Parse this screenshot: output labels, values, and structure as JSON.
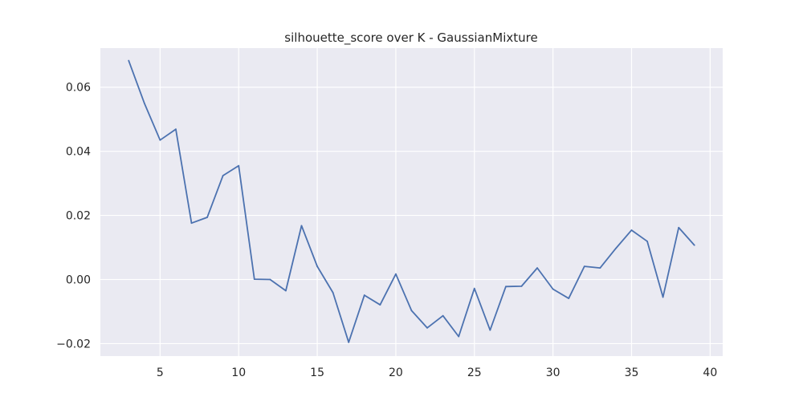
{
  "chart_data": {
    "type": "line",
    "title": "silhouette_score over K - GaussianMixture",
    "xlabel": "",
    "ylabel": "",
    "xlim": [
      1.2,
      40.8
    ],
    "ylim": [
      -0.0239,
      0.0722
    ],
    "xticks": [
      5,
      10,
      15,
      20,
      25,
      30,
      35,
      40
    ],
    "yticks": [
      -0.02,
      0.0,
      0.02,
      0.04,
      0.06
    ],
    "ytick_labels": [
      "−0.02",
      "0.00",
      "0.02",
      "0.04",
      "0.06"
    ],
    "grid": true,
    "background": "#eaeaf2",
    "grid_color": "#ffffff",
    "series": [
      {
        "color": "#4c72b0",
        "x": [
          3,
          4,
          5,
          6,
          7,
          8,
          9,
          10,
          11,
          12,
          13,
          14,
          15,
          16,
          17,
          18,
          19,
          20,
          21,
          22,
          23,
          24,
          25,
          26,
          27,
          28,
          29,
          30,
          31,
          32,
          33,
          34,
          35,
          36,
          37,
          38,
          39
        ],
        "values": [
          0.0683,
          0.055,
          0.0435,
          0.0469,
          0.0176,
          0.0194,
          0.0324,
          0.0355,
          0.0001,
          0.0,
          -0.0035,
          0.0168,
          0.0041,
          -0.0041,
          -0.0196,
          -0.0049,
          -0.0079,
          0.0017,
          -0.0097,
          -0.0151,
          -0.0113,
          -0.0178,
          -0.0028,
          -0.0158,
          -0.0022,
          -0.0021,
          0.0036,
          -0.003,
          -0.0059,
          0.0041,
          0.0036,
          0.0097,
          0.0154,
          0.0119,
          -0.0055,
          0.0162,
          0.0107
        ]
      }
    ]
  }
}
